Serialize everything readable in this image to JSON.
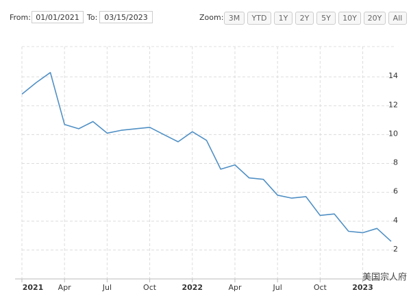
{
  "controls": {
    "from_label": "From:",
    "from_value": "01/01/2021",
    "to_label": "To:",
    "to_value": "03/15/2023",
    "zoom_label": "Zoom:",
    "zoom_buttons": [
      "3M",
      "YTD",
      "1Y",
      "2Y",
      "5Y",
      "10Y",
      "20Y",
      "All"
    ]
  },
  "chart_data": {
    "type": "line",
    "color": "#4f8fc4",
    "grid": true,
    "watermark": "美国宗人府",
    "x": [
      "2021-01",
      "2021-02",
      "2021-03",
      "2021-04",
      "2021-05",
      "2021-06",
      "2021-07",
      "2021-08",
      "2021-09",
      "2021-10",
      "2021-11",
      "2021-12",
      "2022-01",
      "2022-02",
      "2022-03",
      "2022-04",
      "2022-05",
      "2022-06",
      "2022-07",
      "2022-08",
      "2022-09",
      "2022-10",
      "2022-11",
      "2022-12",
      "2023-01",
      "2023-02",
      "2023-03"
    ],
    "values": [
      12.8,
      13.6,
      14.3,
      10.7,
      10.4,
      10.9,
      10.1,
      10.3,
      10.4,
      10.5,
      10.0,
      9.5,
      10.2,
      9.6,
      7.6,
      7.9,
      7.0,
      6.9,
      5.8,
      5.6,
      5.7,
      4.4,
      4.5,
      3.3,
      3.2,
      3.5,
      2.6
    ],
    "xlim": [
      "2021-01",
      "2023-03"
    ],
    "xticks": [
      {
        "value": "2021-01",
        "label": "2021"
      },
      {
        "value": "2021-04",
        "label": "Apr"
      },
      {
        "value": "2021-07",
        "label": "Jul"
      },
      {
        "value": "2021-10",
        "label": "Oct"
      },
      {
        "value": "2022-01",
        "label": "2022"
      },
      {
        "value": "2022-04",
        "label": "Apr"
      },
      {
        "value": "2022-07",
        "label": "Jul"
      },
      {
        "value": "2022-10",
        "label": "Oct"
      },
      {
        "value": "2023-01",
        "label": "2023"
      }
    ],
    "ylim": [
      0,
      16
    ],
    "yticks": [
      2,
      4,
      6,
      8,
      10,
      12,
      14
    ]
  }
}
